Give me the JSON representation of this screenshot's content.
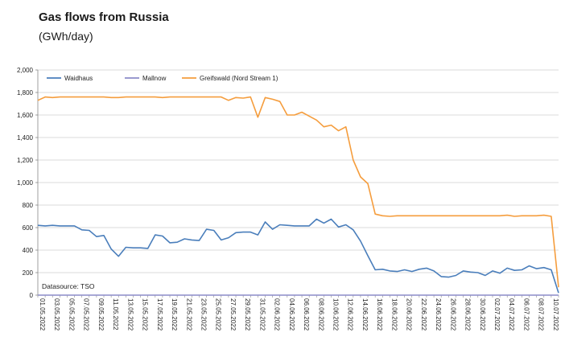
{
  "chart_data": {
    "type": "line",
    "title": "Gas flows from Russia",
    "subtitle": "(GWh/day)",
    "xlabel": "",
    "ylabel": "",
    "ylim": [
      0,
      2000
    ],
    "yticks": [
      0,
      200,
      400,
      600,
      800,
      1000,
      1200,
      1400,
      1600,
      1800,
      2000
    ],
    "ytick_labels": [
      "0",
      "200",
      "400",
      "600",
      "800",
      "1,000",
      "1,200",
      "1,400",
      "1,600",
      "1,800",
      "2,000"
    ],
    "x_count": 72,
    "xtick_labels": [
      "01.05.2022",
      "03.05.2022",
      "05.05.2022",
      "07.05.2022",
      "09.05.2022",
      "11.05.2022",
      "13.05.2022",
      "15.05.2022",
      "17.05.2022",
      "19.05.2022",
      "21.05.2022",
      "23.05.2022",
      "25.05.2022",
      "27.05.2022",
      "29.05.2022",
      "31.05.2022",
      "02.06.2022",
      "04.06.2022",
      "06.06.2022",
      "08.06.2022",
      "10.06.2022",
      "12.06.2022",
      "14.06.2022",
      "16.06.2022",
      "18.06.2022",
      "20.06.2022",
      "22.06.2022",
      "24.06.2022",
      "26.06.2022",
      "28.06.2022",
      "30.06.2022",
      "02.07.2022",
      "04.07.2022",
      "06.07.2022",
      "08.07.2022",
      "10.07.2022"
    ],
    "legend_position": "top-left",
    "source": "Datasource: TSO",
    "series": [
      {
        "name": "Waidhaus",
        "color": "#4a7ebb",
        "values": [
          620,
          615,
          620,
          615,
          615,
          615,
          580,
          575,
          520,
          530,
          410,
          345,
          425,
          420,
          420,
          415,
          535,
          525,
          465,
          470,
          500,
          490,
          485,
          585,
          575,
          490,
          510,
          555,
          560,
          560,
          535,
          650,
          585,
          625,
          620,
          615,
          615,
          615,
          675,
          640,
          675,
          605,
          625,
          580,
          480,
          350,
          225,
          230,
          215,
          210,
          225,
          210,
          230,
          240,
          215,
          165,
          160,
          175,
          215,
          205,
          200,
          175,
          215,
          195,
          240,
          220,
          225,
          260,
          235,
          245,
          225,
          20
        ]
      },
      {
        "name": "Mallnow",
        "color": "#8c8cc8",
        "values": [
          0,
          0,
          0,
          0,
          0,
          0,
          0,
          0,
          0,
          0,
          0,
          0,
          0,
          0,
          0,
          0,
          0,
          0,
          0,
          0,
          0,
          0,
          0,
          0,
          0,
          0,
          0,
          0,
          0,
          0,
          0,
          0,
          0,
          0,
          0,
          0,
          0,
          0,
          0,
          0,
          0,
          0,
          0,
          0,
          0,
          0,
          0,
          0,
          0,
          0,
          0,
          0,
          0,
          0,
          0,
          0,
          0,
          0,
          0,
          0,
          0,
          0,
          0,
          0,
          0,
          0,
          0,
          0,
          0,
          0,
          0,
          0
        ]
      },
      {
        "name": "Greifswald (Nord Stream 1)",
        "color": "#f59d3d",
        "values": [
          1730,
          1760,
          1755,
          1760,
          1760,
          1760,
          1760,
          1760,
          1760,
          1760,
          1755,
          1755,
          1760,
          1760,
          1760,
          1760,
          1760,
          1755,
          1760,
          1760,
          1760,
          1760,
          1760,
          1760,
          1760,
          1760,
          1730,
          1755,
          1750,
          1760,
          1580,
          1755,
          1740,
          1720,
          1600,
          1600,
          1625,
          1590,
          1555,
          1495,
          1510,
          1460,
          1495,
          1200,
          1050,
          990,
          720,
          705,
          700,
          705,
          705,
          705,
          705,
          705,
          705,
          705,
          705,
          705,
          705,
          705,
          705,
          705,
          705,
          705,
          710,
          700,
          705,
          705,
          705,
          710,
          700,
          70
        ]
      }
    ]
  }
}
